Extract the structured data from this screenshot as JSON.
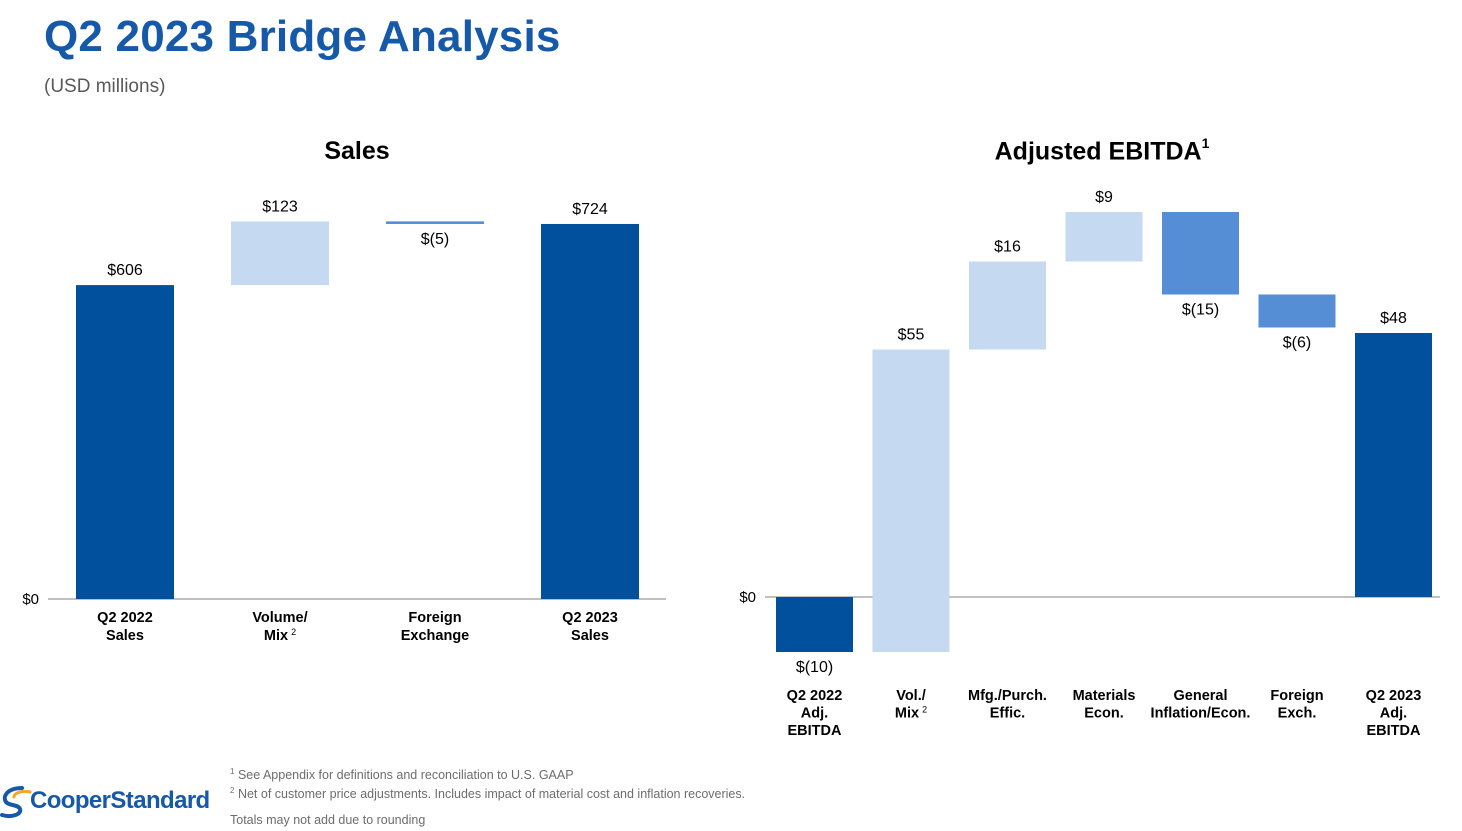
{
  "header": {
    "title": "Q2 2023 Bridge Analysis",
    "subtitle": "(USD millions)"
  },
  "colors": {
    "total": "#00509d",
    "increase": "#c5d9f1",
    "decrease": "#558ed5",
    "title": "#1559a8"
  },
  "chart_data": [
    {
      "type": "bar",
      "subtype": "waterfall",
      "title": "Sales",
      "title_superscript": "",
      "zero_label": "$0",
      "ylim": [
        0,
        760
      ],
      "grid": false,
      "categories": [
        [
          "Q2 2022",
          "Sales"
        ],
        [
          "Volume/",
          "Mix"
        ],
        [
          "Foreign",
          "Exchange"
        ],
        [
          "Q2 2023",
          "Sales"
        ]
      ],
      "category_superscripts": [
        "",
        "2",
        "",
        ""
      ],
      "steps": [
        {
          "kind": "total",
          "value": 606,
          "label": "$606"
        },
        {
          "kind": "increase",
          "value": 123,
          "label": "$123"
        },
        {
          "kind": "decrease",
          "value": -5,
          "label": "$(5)"
        },
        {
          "kind": "total",
          "value": 724,
          "label": "$724"
        }
      ]
    },
    {
      "type": "bar",
      "subtype": "waterfall",
      "title": "Adjusted EBITDA",
      "title_superscript": "1",
      "zero_label": "$0",
      "ylim": [
        -12,
        78
      ],
      "grid": false,
      "categories": [
        [
          "Q2 2022",
          "Adj.",
          "EBITDA"
        ],
        [
          "Vol./",
          "Mix"
        ],
        [
          "Mfg./Purch.",
          "Effic."
        ],
        [
          "Materials",
          "Econ."
        ],
        [
          "General",
          "Inflation/Econ."
        ],
        [
          "Foreign",
          "Exch."
        ],
        [
          "Q2 2023",
          "Adj.",
          "EBITDA"
        ]
      ],
      "category_superscripts": [
        "",
        "2",
        "",
        "",
        "",
        "",
        ""
      ],
      "steps": [
        {
          "kind": "total",
          "value": -10,
          "label": "$(10)"
        },
        {
          "kind": "increase",
          "value": 55,
          "label": "$55"
        },
        {
          "kind": "increase",
          "value": 16,
          "label": "$16"
        },
        {
          "kind": "increase",
          "value": 9,
          "label": "$9"
        },
        {
          "kind": "decrease",
          "value": -15,
          "label": "$(15)"
        },
        {
          "kind": "decrease",
          "value": -6,
          "label": "$(6)"
        },
        {
          "kind": "total",
          "value": 48,
          "label": "$48"
        }
      ]
    }
  ],
  "footnotes": {
    "note1_marker": "1",
    "note1": "See Appendix for definitions and reconciliation to U.S. GAAP",
    "note2_marker": "2",
    "note2": "Net of customer price adjustments. Includes impact of material cost and inflation recoveries.",
    "note3": "Totals may not add due to rounding"
  },
  "logo": {
    "text": "CooperStandard",
    "icon": "cooper-standard-swoosh-icon"
  }
}
